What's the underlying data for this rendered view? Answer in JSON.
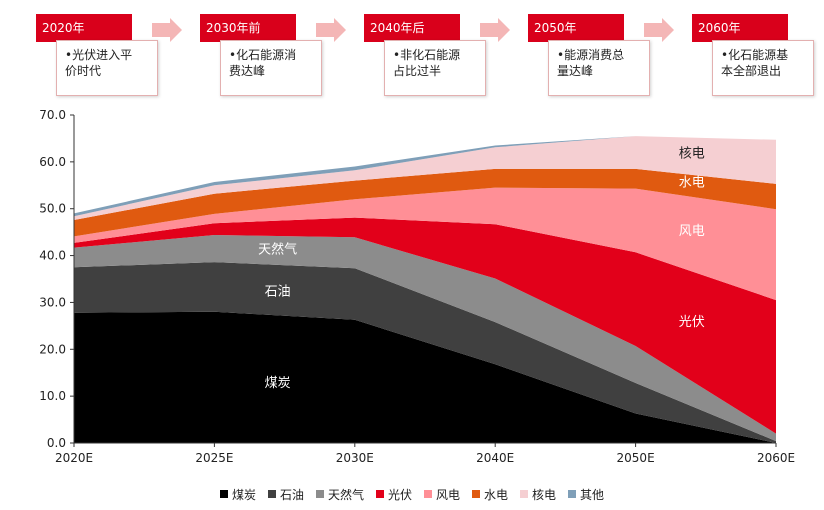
{
  "timeline": [
    {
      "year": "2020年",
      "text": [
        "•光伏进入平",
        "价时代"
      ]
    },
    {
      "year": "2030年前",
      "text": [
        "•化石能源消",
        "费达峰"
      ]
    },
    {
      "year": "2040年后",
      "text": [
        "•非化石能源",
        "占比过半"
      ]
    },
    {
      "year": "2050年",
      "text": [
        "•能源消费总",
        "量达峰"
      ]
    },
    {
      "year": "2060年",
      "text": [
        "•化石能源基",
        "本全部退出"
      ]
    }
  ],
  "colors": {
    "accent": "#d9001b",
    "arrow": "#f4b6b6",
    "煤炭": "#000000",
    "石油": "#404040",
    "天然气": "#8c8c8c",
    "光伏": "#e2001a",
    "风电": "#ff8f96",
    "水电": "#e05a10",
    "核电": "#f5cfd2",
    "其他": "#7f9fb8"
  },
  "chart_data": {
    "type": "area",
    "stacked": true,
    "x": [
      "2020E",
      "2025E",
      "2030E",
      "2040E",
      "2050E",
      "2060E"
    ],
    "ylim": [
      0,
      70
    ],
    "yticks": [
      0,
      10,
      20,
      30,
      40,
      50,
      60,
      70
    ],
    "ytick_labels": [
      "0.0",
      "10.0",
      "20.0",
      "30.0",
      "40.0",
      "50.0",
      "60.0",
      "70.0"
    ],
    "grid": false,
    "legend_position": "bottom",
    "series": [
      {
        "name": "煤炭",
        "values": [
          27.8,
          28.0,
          26.3,
          16.8,
          6.3,
          0.0
        ]
      },
      {
        "name": "石油",
        "values": [
          9.7,
          10.6,
          11.0,
          9.0,
          6.5,
          0.4
        ]
      },
      {
        "name": "天然气",
        "values": [
          4.2,
          5.8,
          6.6,
          9.3,
          7.9,
          1.6
        ]
      },
      {
        "name": "光伏",
        "values": [
          1.0,
          2.5,
          4.2,
          11.6,
          20.0,
          28.5
        ]
      },
      {
        "name": "风电",
        "values": [
          1.4,
          2.0,
          3.9,
          7.8,
          13.6,
          19.4
        ]
      },
      {
        "name": "水电",
        "values": [
          3.5,
          4.3,
          4.0,
          4.0,
          4.2,
          5.4
        ]
      },
      {
        "name": "核电",
        "values": [
          0.8,
          1.8,
          2.2,
          4.6,
          7.0,
          9.4
        ]
      },
      {
        "name": "其他",
        "values": [
          0.6,
          0.7,
          0.8,
          0.4,
          0.0,
          0.0
        ]
      }
    ],
    "area_labels": [
      {
        "series": "煤炭",
        "text": "煤炭",
        "color": "#ffffff",
        "x_index": 1.45,
        "value": 13.0
      },
      {
        "series": "石油",
        "text": "石油",
        "color": "#ffffff",
        "x_index": 1.45,
        "value": 32.5
      },
      {
        "series": "天然气",
        "text": "天然气",
        "color": "#ffffff",
        "x_index": 1.45,
        "value": 41.5
      },
      {
        "series": "光伏",
        "text": "光伏",
        "color": "#ffffff",
        "x_index": 4.4,
        "value": 26.0
      },
      {
        "series": "风电",
        "text": "风电",
        "color": "#ffffff",
        "x_index": 4.4,
        "value": 45.5
      },
      {
        "series": "水电",
        "text": "水电",
        "color": "#ffffff",
        "x_index": 4.4,
        "value": 55.8
      },
      {
        "series": "核电",
        "text": "核电",
        "color": "#222222",
        "x_index": 4.4,
        "value": 62.0
      }
    ]
  }
}
